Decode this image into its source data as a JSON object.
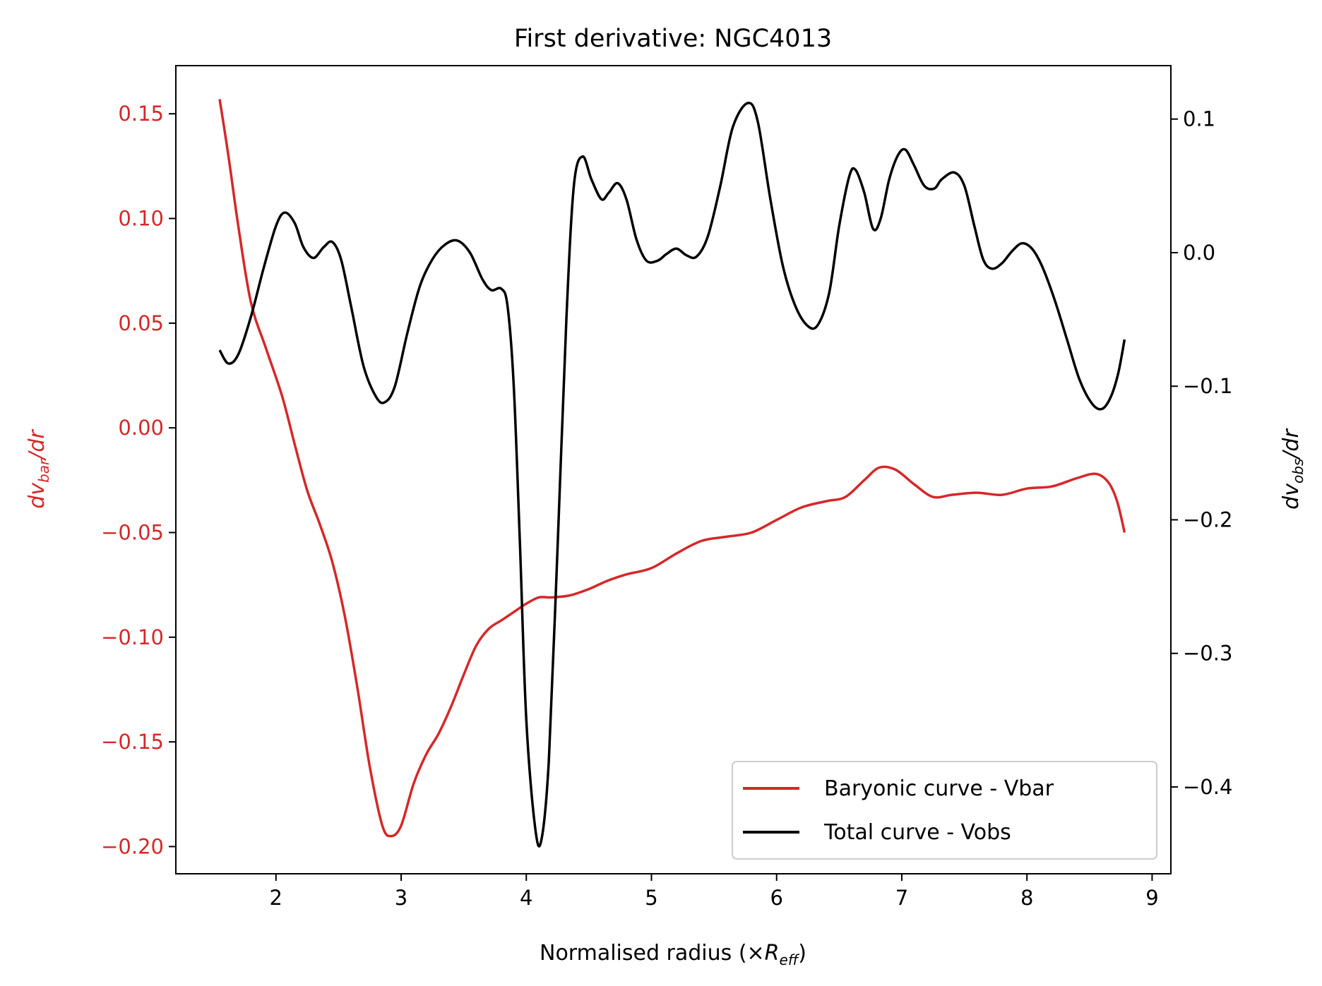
{
  "chart_data": {
    "type": "line",
    "title": "First derivative: NGC4013",
    "xlabel": {
      "main": "Normalised radius (×",
      "var": "R",
      "sub": "eff",
      "close": ")"
    },
    "ylabel_left": {
      "var": "dv",
      "sub": "bar",
      "rest": "/dr"
    },
    "ylabel_right": {
      "var": "dv",
      "sub": "obs",
      "rest": "/dr"
    },
    "xlim": [
      1.2,
      9.15
    ],
    "ylim_left": [
      -0.213,
      0.173
    ],
    "ylim_right": [
      -0.465,
      0.14
    ],
    "x_ticks": [
      2,
      3,
      4,
      5,
      6,
      7,
      8,
      9
    ],
    "y_left_ticks": [
      0.15,
      0.1,
      0.05,
      0.0,
      -0.05,
      -0.1,
      -0.15,
      -0.2
    ],
    "y_left_tick_labels": [
      "0.15",
      "0.10",
      "0.05",
      "0.00",
      "−0.05",
      "−0.10",
      "−0.15",
      "−0.20"
    ],
    "y_right_ticks": [
      0.1,
      0.0,
      -0.1,
      -0.2,
      -0.3,
      -0.4
    ],
    "y_right_tick_labels": [
      "0.1",
      "0.0",
      "−0.1",
      "−0.2",
      "−0.3",
      "−0.4"
    ],
    "legend_position": "lower-right",
    "colors": {
      "bar": "#d62728",
      "obs": "#000000",
      "left_axis": "#d62728",
      "right_axis": "#000000"
    },
    "series": [
      {
        "name": "Baryonic curve - Vbar",
        "axis": "left",
        "color": "#d62728",
        "points": [
          [
            1.55,
            0.157
          ],
          [
            1.62,
            0.13
          ],
          [
            1.7,
            0.096
          ],
          [
            1.8,
            0.06
          ],
          [
            1.92,
            0.038
          ],
          [
            2.05,
            0.015
          ],
          [
            2.15,
            -0.008
          ],
          [
            2.25,
            -0.03
          ],
          [
            2.35,
            -0.046
          ],
          [
            2.45,
            -0.064
          ],
          [
            2.55,
            -0.09
          ],
          [
            2.65,
            -0.124
          ],
          [
            2.75,
            -0.162
          ],
          [
            2.85,
            -0.19
          ],
          [
            2.92,
            -0.195
          ],
          [
            3.0,
            -0.19
          ],
          [
            3.1,
            -0.17
          ],
          [
            3.2,
            -0.156
          ],
          [
            3.3,
            -0.146
          ],
          [
            3.4,
            -0.133
          ],
          [
            3.5,
            -0.118
          ],
          [
            3.6,
            -0.104
          ],
          [
            3.7,
            -0.096
          ],
          [
            3.8,
            -0.092
          ],
          [
            3.9,
            -0.088
          ],
          [
            4.0,
            -0.084
          ],
          [
            4.1,
            -0.081
          ],
          [
            4.2,
            -0.081
          ],
          [
            4.35,
            -0.08
          ],
          [
            4.5,
            -0.077
          ],
          [
            4.65,
            -0.073
          ],
          [
            4.8,
            -0.07
          ],
          [
            5.0,
            -0.067
          ],
          [
            5.2,
            -0.06
          ],
          [
            5.4,
            -0.054
          ],
          [
            5.6,
            -0.052
          ],
          [
            5.8,
            -0.05
          ],
          [
            6.0,
            -0.044
          ],
          [
            6.2,
            -0.038
          ],
          [
            6.4,
            -0.035
          ],
          [
            6.55,
            -0.033
          ],
          [
            6.7,
            -0.025
          ],
          [
            6.82,
            -0.019
          ],
          [
            6.95,
            -0.02
          ],
          [
            7.1,
            -0.027
          ],
          [
            7.25,
            -0.033
          ],
          [
            7.4,
            -0.032
          ],
          [
            7.6,
            -0.031
          ],
          [
            7.8,
            -0.032
          ],
          [
            8.0,
            -0.029
          ],
          [
            8.2,
            -0.028
          ],
          [
            8.4,
            -0.024
          ],
          [
            8.55,
            -0.022
          ],
          [
            8.65,
            -0.026
          ],
          [
            8.72,
            -0.035
          ],
          [
            8.78,
            -0.05
          ]
        ]
      },
      {
        "name": "Total curve - Vobs",
        "axis": "right",
        "color": "#000000",
        "points": [
          [
            1.55,
            -0.073
          ],
          [
            1.62,
            -0.083
          ],
          [
            1.7,
            -0.076
          ],
          [
            1.8,
            -0.048
          ],
          [
            1.9,
            -0.012
          ],
          [
            2.0,
            0.02
          ],
          [
            2.07,
            0.03
          ],
          [
            2.15,
            0.022
          ],
          [
            2.22,
            0.004
          ],
          [
            2.3,
            -0.004
          ],
          [
            2.38,
            0.004
          ],
          [
            2.45,
            0.008
          ],
          [
            2.52,
            -0.005
          ],
          [
            2.6,
            -0.04
          ],
          [
            2.7,
            -0.085
          ],
          [
            2.8,
            -0.108
          ],
          [
            2.87,
            -0.112
          ],
          [
            2.95,
            -0.1
          ],
          [
            3.05,
            -0.06
          ],
          [
            3.15,
            -0.025
          ],
          [
            3.25,
            -0.005
          ],
          [
            3.35,
            0.006
          ],
          [
            3.45,
            0.009
          ],
          [
            3.55,
            0.0
          ],
          [
            3.65,
            -0.02
          ],
          [
            3.72,
            -0.028
          ],
          [
            3.8,
            -0.027
          ],
          [
            3.85,
            -0.04
          ],
          [
            3.9,
            -0.1
          ],
          [
            3.95,
            -0.22
          ],
          [
            4.0,
            -0.35
          ],
          [
            4.07,
            -0.43
          ],
          [
            4.12,
            -0.44
          ],
          [
            4.18,
            -0.38
          ],
          [
            4.25,
            -0.22
          ],
          [
            4.32,
            -0.05
          ],
          [
            4.38,
            0.05
          ],
          [
            4.45,
            0.072
          ],
          [
            4.52,
            0.055
          ],
          [
            4.6,
            0.04
          ],
          [
            4.66,
            0.045
          ],
          [
            4.73,
            0.052
          ],
          [
            4.8,
            0.04
          ],
          [
            4.88,
            0.01
          ],
          [
            4.96,
            -0.006
          ],
          [
            5.05,
            -0.006
          ],
          [
            5.12,
            -0.001
          ],
          [
            5.2,
            0.003
          ],
          [
            5.28,
            -0.002
          ],
          [
            5.36,
            -0.003
          ],
          [
            5.45,
            0.012
          ],
          [
            5.55,
            0.05
          ],
          [
            5.65,
            0.094
          ],
          [
            5.77,
            0.112
          ],
          [
            5.85,
            0.098
          ],
          [
            5.95,
            0.04
          ],
          [
            6.05,
            -0.01
          ],
          [
            6.15,
            -0.04
          ],
          [
            6.25,
            -0.055
          ],
          [
            6.33,
            -0.054
          ],
          [
            6.42,
            -0.03
          ],
          [
            6.5,
            0.02
          ],
          [
            6.58,
            0.057
          ],
          [
            6.63,
            0.062
          ],
          [
            6.7,
            0.045
          ],
          [
            6.77,
            0.018
          ],
          [
            6.83,
            0.025
          ],
          [
            6.9,
            0.055
          ],
          [
            6.97,
            0.073
          ],
          [
            7.03,
            0.077
          ],
          [
            7.1,
            0.065
          ],
          [
            7.18,
            0.05
          ],
          [
            7.26,
            0.048
          ],
          [
            7.32,
            0.055
          ],
          [
            7.42,
            0.06
          ],
          [
            7.5,
            0.05
          ],
          [
            7.58,
            0.02
          ],
          [
            7.65,
            -0.005
          ],
          [
            7.72,
            -0.012
          ],
          [
            7.8,
            -0.008
          ],
          [
            7.88,
            0.001
          ],
          [
            7.96,
            0.007
          ],
          [
            8.04,
            0.003
          ],
          [
            8.12,
            -0.01
          ],
          [
            8.22,
            -0.035
          ],
          [
            8.32,
            -0.065
          ],
          [
            8.42,
            -0.095
          ],
          [
            8.52,
            -0.113
          ],
          [
            8.6,
            -0.117
          ],
          [
            8.67,
            -0.108
          ],
          [
            8.73,
            -0.09
          ],
          [
            8.78,
            -0.065
          ]
        ]
      }
    ]
  }
}
